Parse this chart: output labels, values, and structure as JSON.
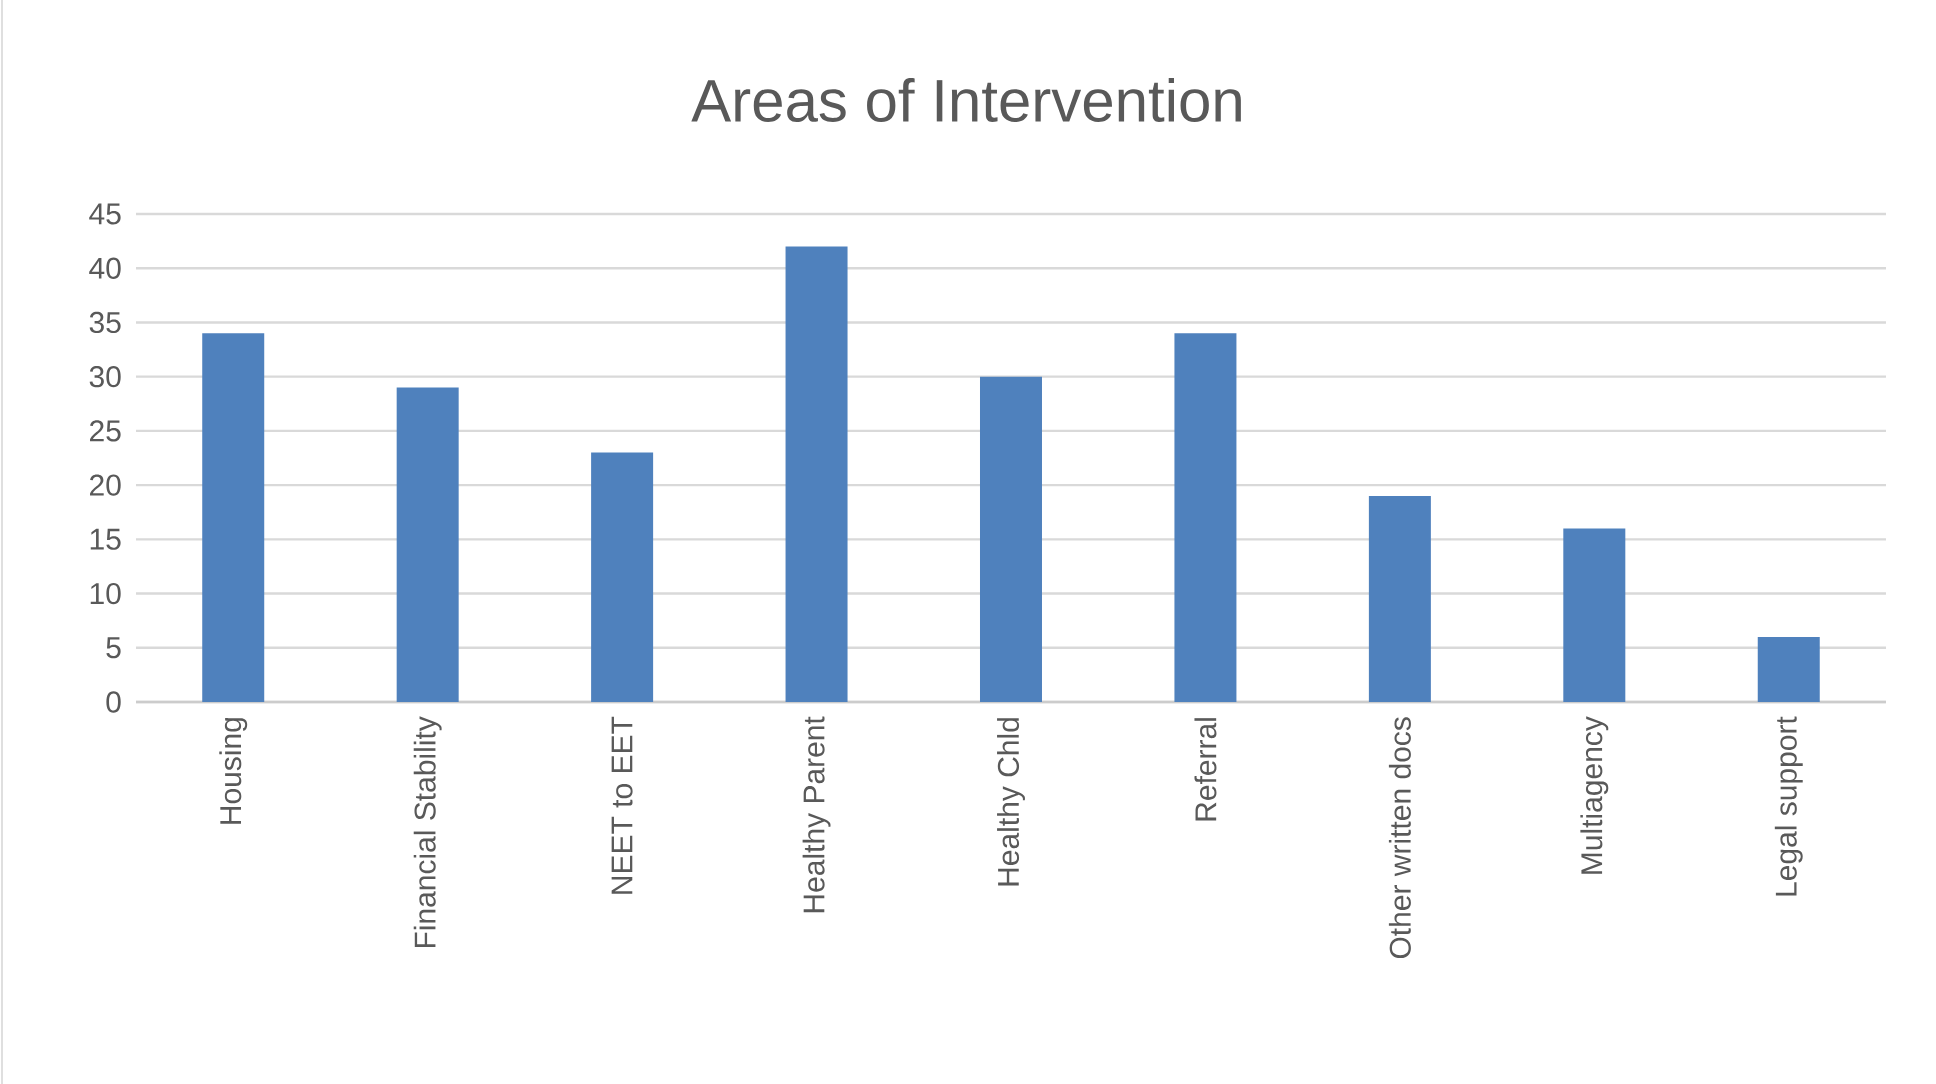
{
  "chart_data": {
    "type": "bar",
    "title": "Areas of Intervention",
    "categories": [
      "Housing",
      "Financial Stability",
      "NEET to EET",
      "Healthy Parent",
      "Healthy Chld",
      "Referral",
      "Other written docs",
      "Multiagency",
      "Legal support"
    ],
    "values": [
      34,
      29,
      23,
      42,
      30,
      34,
      19,
      16,
      6
    ],
    "color": "#4f81bd",
    "ylim": [
      0,
      45
    ],
    "yticks": [
      0,
      5,
      10,
      15,
      20,
      25,
      30,
      35,
      40,
      45
    ],
    "grid": "y"
  }
}
